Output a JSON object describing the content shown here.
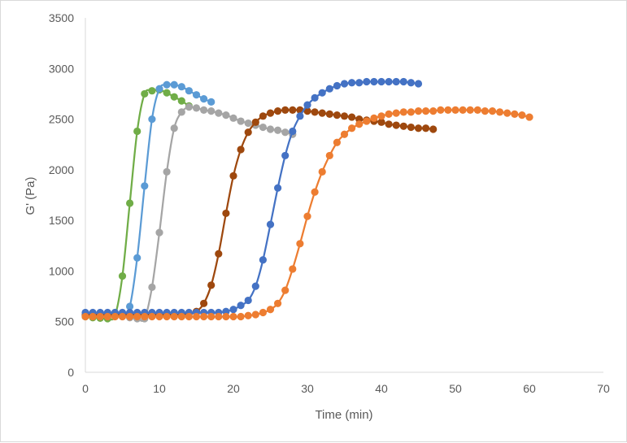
{
  "chart_data": {
    "type": "scatter",
    "title": "",
    "xlabel": "Time (min)",
    "ylabel": "G' (Pa)",
    "xlim": [
      0,
      70
    ],
    "ylim": [
      0,
      3500
    ],
    "xticks": [
      0,
      10,
      20,
      30,
      40,
      50,
      60,
      70
    ],
    "yticks": [
      0,
      500,
      1000,
      1500,
      2000,
      2500,
      3000,
      3500
    ],
    "grid": false,
    "legend": "none",
    "series": [
      {
        "color": "#70ad47",
        "x": [
          0,
          1,
          2,
          3,
          4,
          5,
          6,
          7,
          8,
          9,
          10,
          11,
          12,
          13,
          14
        ],
        "y": [
          550,
          540,
          535,
          530,
          560,
          950,
          1670,
          2380,
          2750,
          2780,
          2790,
          2760,
          2720,
          2680,
          2630
        ]
      },
      {
        "color": "#5b9bd5",
        "x": [
          0,
          1,
          2,
          3,
          4,
          5,
          6,
          7,
          8,
          9,
          10,
          11,
          12,
          13,
          14,
          15,
          16,
          17
        ],
        "y": [
          560,
          560,
          560,
          560,
          560,
          560,
          650,
          1130,
          1840,
          2500,
          2800,
          2840,
          2840,
          2820,
          2780,
          2740,
          2700,
          2670
        ]
      },
      {
        "color": "#a5a5a5",
        "x": [
          0,
          1,
          2,
          3,
          4,
          5,
          6,
          7,
          8,
          9,
          10,
          11,
          12,
          13,
          14,
          15,
          16,
          17,
          18,
          19,
          20,
          21,
          22,
          23,
          24,
          25,
          26,
          27,
          28
        ],
        "y": [
          560,
          560,
          560,
          560,
          560,
          560,
          540,
          530,
          530,
          840,
          1380,
          1980,
          2410,
          2570,
          2620,
          2610,
          2590,
          2580,
          2560,
          2540,
          2510,
          2480,
          2460,
          2440,
          2420,
          2400,
          2390,
          2370,
          2350
        ]
      },
      {
        "color": "#9e480e",
        "x": [
          0,
          1,
          2,
          3,
          4,
          5,
          6,
          7,
          8,
          9,
          10,
          11,
          12,
          13,
          14,
          15,
          16,
          17,
          18,
          19,
          20,
          21,
          22,
          23,
          24,
          25,
          26,
          27,
          28,
          29,
          30,
          31,
          32,
          33,
          34,
          35,
          36,
          37,
          38,
          39,
          40,
          41,
          42,
          43,
          44,
          45,
          46,
          47
        ],
        "y": [
          570,
          570,
          570,
          570,
          570,
          570,
          570,
          570,
          570,
          570,
          570,
          570,
          570,
          570,
          580,
          600,
          680,
          860,
          1170,
          1570,
          1940,
          2200,
          2370,
          2470,
          2530,
          2560,
          2580,
          2590,
          2590,
          2590,
          2580,
          2570,
          2560,
          2550,
          2540,
          2530,
          2520,
          2500,
          2490,
          2480,
          2470,
          2450,
          2440,
          2430,
          2420,
          2410,
          2410,
          2400
        ]
      },
      {
        "color": "#4472c4",
        "x": [
          0,
          1,
          2,
          3,
          4,
          5,
          6,
          7,
          8,
          9,
          10,
          11,
          12,
          13,
          14,
          15,
          16,
          17,
          18,
          19,
          20,
          21,
          22,
          23,
          24,
          25,
          26,
          27,
          28,
          29,
          30,
          31,
          32,
          33,
          34,
          35,
          36,
          37,
          38,
          39,
          40,
          41,
          42,
          43,
          44,
          45
        ],
        "y": [
          590,
          590,
          590,
          590,
          590,
          590,
          590,
          590,
          590,
          590,
          590,
          590,
          590,
          590,
          590,
          590,
          590,
          590,
          590,
          600,
          620,
          660,
          710,
          850,
          1110,
          1460,
          1820,
          2140,
          2380,
          2530,
          2640,
          2710,
          2760,
          2800,
          2830,
          2850,
          2860,
          2860,
          2870,
          2870,
          2870,
          2870,
          2870,
          2870,
          2860,
          2850
        ]
      },
      {
        "color": "#ed7d31",
        "x": [
          0,
          1,
          2,
          3,
          4,
          5,
          6,
          7,
          8,
          9,
          10,
          11,
          12,
          13,
          14,
          15,
          16,
          17,
          18,
          19,
          20,
          21,
          22,
          23,
          24,
          25,
          26,
          27,
          28,
          29,
          30,
          31,
          32,
          33,
          34,
          35,
          36,
          37,
          38,
          39,
          40,
          41,
          42,
          43,
          44,
          45,
          46,
          47,
          48,
          49,
          50,
          51,
          52,
          53,
          54,
          55,
          56,
          57,
          58,
          59,
          60
        ],
        "y": [
          550,
          550,
          550,
          550,
          550,
          550,
          550,
          550,
          550,
          550,
          550,
          550,
          550,
          550,
          550,
          550,
          550,
          550,
          550,
          550,
          550,
          550,
          560,
          570,
          590,
          620,
          680,
          810,
          1020,
          1270,
          1540,
          1780,
          1980,
          2140,
          2270,
          2350,
          2410,
          2450,
          2480,
          2510,
          2530,
          2550,
          2560,
          2570,
          2570,
          2580,
          2580,
          2580,
          2590,
          2590,
          2590,
          2590,
          2590,
          2590,
          2580,
          2580,
          2570,
          2560,
          2550,
          2540,
          2520
        ]
      }
    ]
  }
}
